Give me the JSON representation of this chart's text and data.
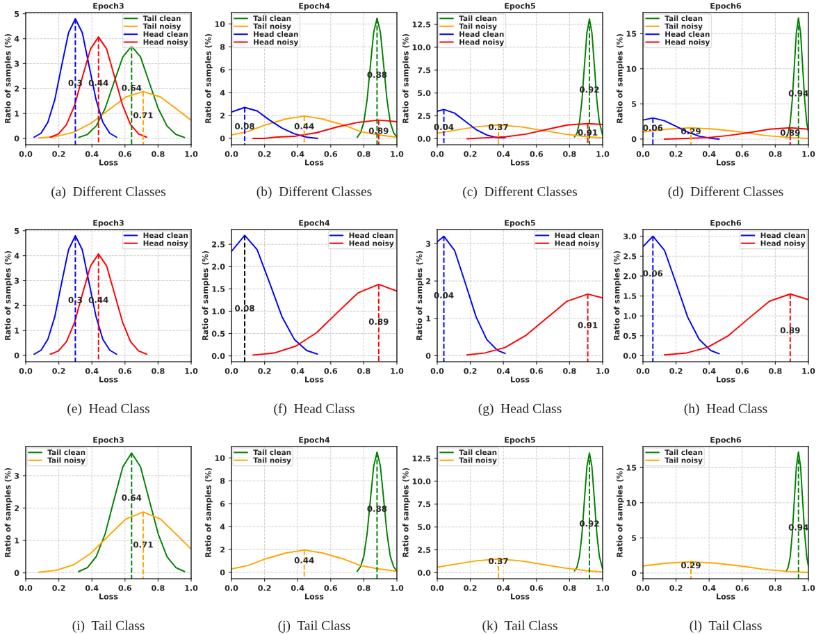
{
  "chart_data": [
    {
      "type": "line",
      "title": "Epoch3",
      "xlabel": "Loss",
      "ylabel": "Ratio of samples (%)",
      "grid": true,
      "legend": "top right",
      "xlim": [
        0,
        1
      ],
      "ylim": [
        -0.25,
        5.05
      ],
      "xticks": [
        {
          "value": 0,
          "label": "0.0"
        },
        {
          "value": 0.2,
          "label": "0.2"
        },
        {
          "value": 0.4,
          "label": "0.4"
        },
        {
          "value": 0.6,
          "label": "0.6"
        },
        {
          "value": 0.8,
          "label": "0.8"
        },
        {
          "value": 1,
          "label": "1.0"
        }
      ],
      "yticks": [
        0,
        1,
        2,
        3,
        4,
        5
      ],
      "series": [
        {
          "name": "Tail clean",
          "color": "#008000",
          "x": [
            0.32,
            0.373,
            0.426,
            0.48,
            0.533,
            0.587,
            0.64,
            0.694,
            0.747,
            0.801,
            0.854,
            0.908,
            0.96
          ],
          "values": [
            0.04,
            0.16,
            0.5,
            1.2,
            2.24,
            3.27,
            3.7,
            3.27,
            2.24,
            1.2,
            0.5,
            0.16,
            0.04
          ]
        },
        {
          "name": "Tail noisy",
          "color": "#ffa500",
          "x": [
            0.08,
            0.185,
            0.29,
            0.395,
            0.5,
            0.605,
            0.71,
            0.815,
            0.92,
            1.0
          ],
          "values": [
            0.02,
            0.08,
            0.25,
            0.61,
            1.14,
            1.66,
            1.88,
            1.66,
            1.14,
            0.73
          ]
        },
        {
          "name": "Head clean",
          "color": "#0000ff",
          "x": [
            0.051,
            0.093,
            0.134,
            0.176,
            0.217,
            0.259,
            0.3,
            0.342,
            0.383,
            0.425,
            0.466,
            0.508,
            0.549
          ],
          "values": [
            0.05,
            0.21,
            0.65,
            1.56,
            2.91,
            4.24,
            4.8,
            4.24,
            2.91,
            1.56,
            0.65,
            0.21,
            0.05
          ]
        },
        {
          "name": "Head noisy",
          "color": "#ff0000",
          "x": [
            0.149,
            0.198,
            0.246,
            0.295,
            0.343,
            0.392,
            0.44,
            0.489,
            0.537,
            0.586,
            0.634,
            0.683,
            0.731
          ],
          "values": [
            0.05,
            0.18,
            0.55,
            1.32,
            2.47,
            3.59,
            4.07,
            3.59,
            2.47,
            1.32,
            0.55,
            0.18,
            0.05
          ]
        },
        {
          "line_style": "dashed",
          "color": "#008000",
          "x": [
            0.64,
            0.64
          ],
          "values": [
            3.7,
            -0.25
          ]
        },
        {
          "line_style": "dashed",
          "color": "#ffa500",
          "x": [
            0.71,
            0.71
          ],
          "values": [
            1.88,
            -0.25
          ]
        },
        {
          "line_style": "dashed",
          "color": "#0000ff",
          "x": [
            0.3,
            0.3
          ],
          "values": [
            4.8,
            -0.25
          ]
        },
        {
          "line_style": "dashed",
          "color": "#ff0000",
          "x": [
            0.44,
            0.44
          ],
          "values": [
            4.07,
            -0.25
          ]
        }
      ],
      "annotations": [
        {
          "text": "0.3",
          "x": 0.3,
          "y": 2.2
        },
        {
          "text": "0.44",
          "x": 0.44,
          "y": 2.2
        },
        {
          "text": "0.64",
          "x": 0.64,
          "y": 2.0
        },
        {
          "text": "0.71",
          "x": 0.71,
          "y": 0.9
        },
        "(a)  Different Classes"
      ]
    },
    {
      "type": "line",
      "title": "Epoch4",
      "xlabel": "Loss",
      "ylabel": "Ratio of samples (%)",
      "grid": true,
      "legend": "top left",
      "xlim": [
        0,
        1
      ],
      "ylim": [
        -0.55,
        11
      ],
      "xticks": [
        {
          "value": 0,
          "label": "0.0"
        },
        {
          "value": 0.2,
          "label": "0.2"
        },
        {
          "value": 0.4,
          "label": "0.4"
        },
        {
          "value": 0.6,
          "label": "0.6"
        },
        {
          "value": 0.8,
          "label": "0.8"
        },
        {
          "value": 1,
          "label": "1.0"
        }
      ],
      "yticks": [
        0,
        2,
        4,
        6,
        8,
        10
      ],
      "series": [
        {
          "name": "Tail clean",
          "color": "#008000",
          "x": [
            0.76,
            0.78,
            0.8,
            0.82,
            0.84,
            0.86,
            0.88,
            0.9,
            0.92,
            0.94,
            0.96,
            0.98,
            1.0
          ],
          "values": [
            0.1,
            0.5,
            1.4,
            3.4,
            6.4,
            9.3,
            10.5,
            9.3,
            6.4,
            3.4,
            1.4,
            0.5,
            0.1
          ]
        },
        {
          "name": "Tail noisy",
          "color": "#ffa500",
          "x": [
            0,
            0.1,
            0.21,
            0.33,
            0.44,
            0.55,
            0.67,
            0.78,
            0.89,
            1.0
          ],
          "values": [
            0.3,
            0.6,
            1.2,
            1.7,
            1.95,
            1.7,
            1.2,
            0.6,
            0.3,
            0.1
          ]
        },
        {
          "name": "Head clean",
          "color": "#0000ff",
          "x": [
            0,
            0.08,
            0.155,
            0.23,
            0.305,
            0.38,
            0.455,
            0.52
          ],
          "values": [
            2.3,
            2.7,
            2.4,
            1.6,
            0.9,
            0.4,
            0.1,
            0.0
          ]
        },
        {
          "name": "Head noisy",
          "color": "#ff0000",
          "x": [
            0.13,
            0.2,
            0.265,
            0.39,
            0.515,
            0.64,
            0.765,
            0.89,
            1.0
          ],
          "values": [
            0.0,
            0.0,
            0.1,
            0.2,
            0.5,
            1.0,
            1.4,
            1.6,
            1.45
          ]
        },
        {
          "line_style": "dashed",
          "color": "#008000",
          "x": [
            0.88,
            0.88
          ],
          "values": [
            10.5,
            -0.55
          ]
        },
        {
          "line_style": "dashed",
          "color": "#ffa500",
          "x": [
            0.44,
            0.44
          ],
          "values": [
            1.95,
            -0.55
          ]
        },
        {
          "line_style": "dashed",
          "color": "#0000ff",
          "x": [
            0.08,
            0.08
          ],
          "values": [
            2.7,
            -0.55
          ]
        },
        {
          "line_style": "dashed",
          "color": "#ff0000",
          "x": [
            0.89,
            0.89
          ],
          "values": [
            1.6,
            -0.55
          ]
        }
      ],
      "annotations": [
        {
          "text": "0.88",
          "x": 0.88,
          "y": 5.5
        },
        {
          "text": "0.44",
          "x": 0.44,
          "y": 1.0
        },
        {
          "text": "0.08",
          "x": 0.08,
          "y": 1.0
        },
        {
          "text": "0.89",
          "x": 0.89,
          "y": 0.6
        },
        "(b)  Different Classes"
      ]
    },
    {
      "type": "line",
      "title": "Epoch5",
      "xlabel": "Loss",
      "ylabel": "Ratio of samples (%)",
      "grid": true,
      "legend": "top left",
      "xlim": [
        0,
        1
      ],
      "ylim": [
        -0.65,
        13.8
      ],
      "xticks": [
        {
          "value": 0,
          "label": "0.0"
        },
        {
          "value": 0.2,
          "label": "0.2"
        },
        {
          "value": 0.4,
          "label": "0.4"
        },
        {
          "value": 0.6,
          "label": "0.6"
        },
        {
          "value": 0.8,
          "label": "0.8"
        },
        {
          "value": 1,
          "label": "1.0"
        }
      ],
      "yticks": [
        {
          "value": 0,
          "label": "0.0"
        },
        {
          "value": 2.5,
          "label": "2.5"
        },
        {
          "value": 5,
          "label": "5.0"
        },
        {
          "value": 7.5,
          "label": "7.5"
        },
        {
          "value": 10,
          "label": "10.0"
        },
        {
          "value": 12.5,
          "label": "12.5"
        }
      ],
      "series": [
        {
          "name": "Tail clean",
          "color": "#008000",
          "x": [
            0.83,
            0.845,
            0.86,
            0.875,
            0.89,
            0.905,
            0.92,
            0.935,
            0.95,
            0.965,
            0.98,
            1.0
          ],
          "values": [
            0.2,
            0.6,
            1.8,
            4.2,
            8.0,
            11.6,
            13.1,
            11.6,
            8.0,
            4.2,
            1.8,
            0.4
          ]
        },
        {
          "name": "Tail noisy",
          "color": "#ffa500",
          "x": [
            0,
            0.1,
            0.235,
            0.37,
            0.505,
            0.64,
            0.775,
            0.91,
            1.0
          ],
          "values": [
            0.6,
            0.9,
            1.3,
            1.5,
            1.3,
            0.9,
            0.5,
            0.2,
            0.1
          ]
        },
        {
          "name": "Head clean",
          "color": "#0000ff",
          "x": [
            0,
            0.04,
            0.105,
            0.17,
            0.235,
            0.3,
            0.365,
            0.41
          ],
          "values": [
            3.0,
            3.2,
            2.8,
            1.9,
            1.0,
            0.4,
            0.1,
            0.1
          ]
        },
        {
          "name": "Head noisy",
          "color": "#ff0000",
          "x": [
            0.18,
            0.285,
            0.41,
            0.535,
            0.66,
            0.785,
            0.91,
            1.0
          ],
          "values": [
            0.0,
            0.1,
            0.2,
            0.5,
            1.0,
            1.5,
            1.65,
            1.55
          ]
        },
        {
          "line_style": "dashed",
          "color": "#008000",
          "x": [
            0.92,
            0.92
          ],
          "values": [
            13.1,
            -0.65
          ]
        },
        {
          "line_style": "dashed",
          "color": "#ffa500",
          "x": [
            0.37,
            0.37
          ],
          "values": [
            1.5,
            -0.65
          ]
        },
        {
          "line_style": "dashed",
          "color": "#0000ff",
          "x": [
            0.04,
            0.04
          ],
          "values": [
            3.2,
            -0.65
          ]
        },
        {
          "line_style": "dashed",
          "color": "#ff0000",
          "x": [
            0.91,
            0.91
          ],
          "values": [
            1.65,
            -0.65
          ]
        }
      ],
      "annotations": [
        {
          "text": "0.92",
          "x": 0.92,
          "y": 5.3
        },
        {
          "text": "0.37",
          "x": 0.37,
          "y": 1.2
        },
        {
          "text": "0.04",
          "x": 0.04,
          "y": 1.2
        },
        {
          "text": "0.91",
          "x": 0.91,
          "y": 0.6
        },
        "(c)  Different Classes"
      ]
    },
    {
      "type": "line",
      "title": "Epoch6",
      "xlabel": "Loss",
      "ylabel": "Ratio of samples (%)",
      "grid": true,
      "legend": "top left",
      "xlim": [
        0,
        1
      ],
      "ylim": [
        -0.8,
        18
      ],
      "xticks": [
        {
          "value": 0,
          "label": "0.0"
        },
        {
          "value": 0.2,
          "label": "0.2"
        },
        {
          "value": 0.4,
          "label": "0.4"
        },
        {
          "value": 0.6,
          "label": "0.6"
        },
        {
          "value": 0.8,
          "label": "0.8"
        },
        {
          "value": 1,
          "label": "1.0"
        }
      ],
      "yticks": [
        0,
        5,
        10,
        15
      ],
      "series": [
        {
          "name": "Tail clean",
          "color": "#008000",
          "x": [
            0.865,
            0.8775,
            0.89,
            0.9025,
            0.915,
            0.9275,
            0.94,
            0.9525,
            0.965,
            0.9775,
            0.99,
            1.0
          ],
          "values": [
            0.2,
            0.8,
            2.3,
            5.6,
            10.4,
            15.2,
            17.2,
            15.2,
            10.4,
            5.6,
            2.3,
            1.0
          ]
        },
        {
          "name": "Tail noisy",
          "color": "#ffa500",
          "x": [
            0,
            0.14,
            0.29,
            0.44,
            0.59,
            0.74,
            0.89,
            1.0
          ],
          "values": [
            1.0,
            1.4,
            1.6,
            1.4,
            1.0,
            0.5,
            0.2,
            0.1
          ]
        },
        {
          "name": "Head clean",
          "color": "#0000ff",
          "x": [
            0,
            0.06,
            0.13,
            0.2,
            0.27,
            0.34,
            0.41,
            0.46
          ],
          "values": [
            2.7,
            3.0,
            2.6,
            1.8,
            1.0,
            0.4,
            0.1,
            0.0
          ]
        },
        {
          "name": "Head noisy",
          "color": "#ff0000",
          "x": [
            0.13,
            0.265,
            0.39,
            0.515,
            0.64,
            0.765,
            0.89,
            1.0
          ],
          "values": [
            0.0,
            0.1,
            0.2,
            0.5,
            0.9,
            1.4,
            1.6,
            1.4
          ]
        },
        {
          "line_style": "dashed",
          "color": "#008000",
          "x": [
            0.94,
            0.94
          ],
          "values": [
            17.2,
            -0.8
          ]
        },
        {
          "line_style": "dashed",
          "color": "#ffa500",
          "x": [
            0.29,
            0.29
          ],
          "values": [
            1.6,
            -0.8
          ]
        },
        {
          "line_style": "dashed",
          "color": "#0000ff",
          "x": [
            0.06,
            0.06
          ],
          "values": [
            3.0,
            -0.8
          ]
        },
        {
          "line_style": "dashed",
          "color": "#ff0000",
          "x": [
            0.89,
            0.89
          ],
          "values": [
            1.6,
            -0.8
          ]
        }
      ],
      "annotations": [
        {
          "text": "0.94",
          "x": 0.94,
          "y": 6.4
        },
        {
          "text": "0.29",
          "x": 0.29,
          "y": 1.0
        },
        {
          "text": "0.06",
          "x": 0.06,
          "y": 1.5
        },
        {
          "text": "0.89",
          "x": 0.89,
          "y": 0.8
        },
        "(d)  Different Classes"
      ]
    },
    {
      "type": "line",
      "title": "Epoch3",
      "xlabel": "Loss",
      "ylabel": "Ratio of samples (%)",
      "grid": true,
      "legend": "top right",
      "xlim": [
        0,
        1
      ],
      "ylim": [
        -0.25,
        5.05
      ],
      "xticks": [
        {
          "value": 0,
          "label": "0.0"
        },
        {
          "value": 0.2,
          "label": "0.2"
        },
        {
          "value": 0.4,
          "label": "0.4"
        },
        {
          "value": 0.6,
          "label": "0.6"
        },
        {
          "value": 0.8,
          "label": "0.8"
        },
        {
          "value": 1,
          "label": "1.0"
        }
      ],
      "yticks": [
        0,
        1,
        2,
        3,
        4,
        5
      ],
      "series": [
        {
          "name": "Head clean",
          "color": "#0000ff",
          "x": [
            0.051,
            0.093,
            0.134,
            0.176,
            0.217,
            0.259,
            0.3,
            0.342,
            0.383,
            0.425,
            0.466,
            0.508,
            0.549
          ],
          "values": [
            0.05,
            0.21,
            0.65,
            1.56,
            2.91,
            4.24,
            4.8,
            4.24,
            2.91,
            1.56,
            0.65,
            0.21,
            0.05
          ]
        },
        {
          "name": "Head noisy",
          "color": "#ff0000",
          "x": [
            0.149,
            0.198,
            0.246,
            0.295,
            0.343,
            0.392,
            0.44,
            0.489,
            0.537,
            0.586,
            0.634,
            0.683,
            0.731
          ],
          "values": [
            0.05,
            0.18,
            0.55,
            1.32,
            2.47,
            3.59,
            4.07,
            3.59,
            2.47,
            1.32,
            0.55,
            0.18,
            0.05
          ]
        },
        {
          "line_style": "dashed",
          "color": "#0000ff",
          "x": [
            0.3,
            0.3
          ],
          "values": [
            4.8,
            -0.25
          ]
        },
        {
          "line_style": "dashed",
          "color": "#ff0000",
          "x": [
            0.44,
            0.44
          ],
          "values": [
            4.07,
            -0.25
          ]
        }
      ],
      "annotations": [
        {
          "text": "0.3",
          "x": 0.3,
          "y": 2.2
        },
        {
          "text": "0.44",
          "x": 0.44,
          "y": 2.2
        },
        "(e)  Head Class"
      ]
    },
    {
      "type": "line",
      "title": "Epoch4",
      "xlabel": "Loss",
      "ylabel": "Ratio of samples (%)",
      "grid": true,
      "legend": "top right",
      "xlim": [
        0,
        1
      ],
      "ylim": [
        -0.13,
        2.83
      ],
      "xticks": [
        {
          "value": 0,
          "label": "0.0"
        },
        {
          "value": 0.2,
          "label": "0.2"
        },
        {
          "value": 0.4,
          "label": "0.4"
        },
        {
          "value": 0.6,
          "label": "0.6"
        },
        {
          "value": 0.8,
          "label": "0.8"
        },
        {
          "value": 1,
          "label": "1.0"
        }
      ],
      "yticks": [
        {
          "value": 0,
          "label": "0.0"
        },
        {
          "value": 0.5,
          "label": "0.5"
        },
        {
          "value": 1,
          "label": "1.0"
        },
        {
          "value": 1.5,
          "label": "1.5"
        },
        {
          "value": 2,
          "label": "2.0"
        },
        {
          "value": 2.5,
          "label": "2.5"
        }
      ],
      "series": [
        {
          "name": "Head clean",
          "color": "#0000ff",
          "x": [
            0,
            0.08,
            0.155,
            0.23,
            0.305,
            0.38,
            0.455,
            0.52
          ],
          "values": [
            2.34,
            2.7,
            2.38,
            1.64,
            0.88,
            0.37,
            0.12,
            0.04
          ]
        },
        {
          "name": "Head noisy",
          "color": "#ff0000",
          "x": [
            0.13,
            0.2,
            0.265,
            0.39,
            0.515,
            0.64,
            0.765,
            0.89,
            1.0
          ],
          "values": [
            0.02,
            0.04,
            0.07,
            0.22,
            0.52,
            0.97,
            1.41,
            1.6,
            1.45
          ]
        },
        {
          "line_style": "dashed",
          "color": "#000000",
          "x": [
            0.08,
            0.08
          ],
          "values": [
            2.7,
            -0.13
          ]
        },
        {
          "line_style": "dashed",
          "color": "#ff0000",
          "x": [
            0.89,
            0.89
          ],
          "values": [
            1.6,
            -0.13
          ]
        }
      ],
      "annotations": [
        {
          "text": "0.08",
          "x": 0.08,
          "y": 1.05
        },
        {
          "text": "0.89",
          "x": 0.89,
          "y": 0.75
        },
        "(f)  Head Class"
      ]
    },
    {
      "type": "line",
      "title": "Epoch5",
      "xlabel": "Loss",
      "ylabel": "Ratio of samples (%)",
      "grid": true,
      "legend": "top right",
      "xlim": [
        0,
        1
      ],
      "ylim": [
        -0.16,
        3.38
      ],
      "xticks": [
        {
          "value": 0,
          "label": "0.0"
        },
        {
          "value": 0.2,
          "label": "0.2"
        },
        {
          "value": 0.4,
          "label": "0.4"
        },
        {
          "value": 0.6,
          "label": "0.6"
        },
        {
          "value": 0.8,
          "label": "0.8"
        },
        {
          "value": 1,
          "label": "1.0"
        }
      ],
      "yticks": [
        0,
        1,
        2,
        3
      ],
      "series": [
        {
          "name": "Head clean",
          "color": "#0000ff",
          "x": [
            0,
            0.04,
            0.105,
            0.17,
            0.235,
            0.3,
            0.365,
            0.41
          ],
          "values": [
            3.05,
            3.2,
            2.82,
            1.94,
            1.04,
            0.43,
            0.14,
            0.06
          ]
        },
        {
          "name": "Head noisy",
          "color": "#ff0000",
          "x": [
            0.18,
            0.285,
            0.41,
            0.535,
            0.66,
            0.785,
            0.91,
            1.0
          ],
          "values": [
            0.02,
            0.07,
            0.22,
            0.54,
            1.0,
            1.46,
            1.65,
            1.55
          ]
        },
        {
          "line_style": "dashed",
          "color": "#0000ff",
          "x": [
            0.04,
            0.04
          ],
          "values": [
            3.2,
            -0.16
          ]
        },
        {
          "line_style": "dashed",
          "color": "#ff0000",
          "x": [
            0.91,
            0.91
          ],
          "values": [
            1.65,
            -0.16
          ]
        }
      ],
      "annotations": [
        {
          "text": "0.04",
          "x": 0.04,
          "y": 1.6
        },
        {
          "text": "0.91",
          "x": 0.91,
          "y": 0.8
        },
        "(g)  Head Class"
      ]
    },
    {
      "type": "line",
      "title": "Epoch6",
      "xlabel": "Loss",
      "ylabel": "Ratio of samples (%)",
      "grid": true,
      "legend": "top right",
      "xlim": [
        0,
        1
      ],
      "ylim": [
        -0.15,
        3.17
      ],
      "xticks": [
        {
          "value": 0,
          "label": "0.0"
        },
        {
          "value": 0.2,
          "label": "0.2"
        },
        {
          "value": 0.4,
          "label": "0.4"
        },
        {
          "value": 0.6,
          "label": "0.6"
        },
        {
          "value": 0.8,
          "label": "0.8"
        },
        {
          "value": 1,
          "label": "1.0"
        }
      ],
      "yticks": [
        {
          "value": 0,
          "label": "0.0"
        },
        {
          "value": 0.5,
          "label": "0.5"
        },
        {
          "value": 1,
          "label": "1.0"
        },
        {
          "value": 1.5,
          "label": "1.5"
        },
        {
          "value": 2,
          "label": "2.0"
        },
        {
          "value": 2.5,
          "label": "2.5"
        },
        {
          "value": 3,
          "label": "3.0"
        }
      ],
      "series": [
        {
          "name": "Head clean",
          "color": "#0000ff",
          "x": [
            0,
            0.06,
            0.13,
            0.2,
            0.27,
            0.34,
            0.41,
            0.46
          ],
          "values": [
            2.74,
            3.0,
            2.65,
            1.82,
            0.97,
            0.41,
            0.13,
            0.05
          ]
        },
        {
          "name": "Head noisy",
          "color": "#ff0000",
          "x": [
            0.13,
            0.265,
            0.39,
            0.515,
            0.64,
            0.765,
            0.89,
            1.0
          ],
          "values": [
            0.02,
            0.07,
            0.21,
            0.5,
            0.94,
            1.37,
            1.55,
            1.41
          ]
        },
        {
          "line_style": "dashed",
          "color": "#0000ff",
          "x": [
            0.06,
            0.06
          ],
          "values": [
            3.0,
            -0.15
          ]
        },
        {
          "line_style": "dashed",
          "color": "#ff0000",
          "x": [
            0.89,
            0.89
          ],
          "values": [
            1.55,
            -0.15
          ]
        }
      ],
      "annotations": [
        {
          "text": "0.06",
          "x": 0.06,
          "y": 2.05
        },
        {
          "text": "0.89",
          "x": 0.89,
          "y": 0.62
        },
        "(h)  Head Class"
      ]
    },
    {
      "type": "line",
      "title": "Epoch3",
      "xlabel": "Loss",
      "ylabel": "Ratio of samples (%)",
      "grid": true,
      "legend": "top left",
      "xlim": [
        0,
        1
      ],
      "ylim": [
        -0.18,
        3.9
      ],
      "xticks": [
        {
          "value": 0,
          "label": "0.0"
        },
        {
          "value": 0.2,
          "label": "0.2"
        },
        {
          "value": 0.4,
          "label": "0.4"
        },
        {
          "value": 0.6,
          "label": "0.6"
        },
        {
          "value": 0.8,
          "label": "0.8"
        },
        {
          "value": 1,
          "label": "1.0"
        }
      ],
      "yticks": [
        0,
        1,
        2,
        3
      ],
      "series": [
        {
          "name": "Tail clean",
          "color": "#008000",
          "x": [
            0.32,
            0.373,
            0.426,
            0.48,
            0.533,
            0.587,
            0.64,
            0.694,
            0.747,
            0.801,
            0.854,
            0.908,
            0.96
          ],
          "values": [
            0.04,
            0.16,
            0.5,
            1.2,
            2.24,
            3.27,
            3.7,
            3.27,
            2.24,
            1.2,
            0.5,
            0.16,
            0.04
          ]
        },
        {
          "name": "Tail noisy",
          "color": "#ffa500",
          "x": [
            0.08,
            0.185,
            0.29,
            0.395,
            0.5,
            0.605,
            0.71,
            0.815,
            0.92,
            1.0
          ],
          "values": [
            0.02,
            0.08,
            0.25,
            0.61,
            1.14,
            1.66,
            1.88,
            1.66,
            1.14,
            0.73
          ]
        },
        {
          "line_style": "dashed",
          "color": "#008000",
          "x": [
            0.64,
            0.64
          ],
          "values": [
            3.7,
            -0.18
          ]
        },
        {
          "line_style": "dashed",
          "color": "#ffa500",
          "x": [
            0.71,
            0.71
          ],
          "values": [
            1.88,
            -0.18
          ]
        }
      ],
      "annotations": [
        {
          "text": "0.64",
          "x": 0.64,
          "y": 2.3
        },
        {
          "text": "0.71",
          "x": 0.71,
          "y": 0.85
        },
        "(i)  Tail Class"
      ]
    },
    {
      "type": "line",
      "title": "Epoch4",
      "xlabel": "Loss",
      "ylabel": "Ratio of samples (%)",
      "grid": true,
      "legend": "top left",
      "xlim": [
        0,
        1
      ],
      "ylim": [
        -0.55,
        11
      ],
      "xticks": [
        {
          "value": 0,
          "label": "0.0"
        },
        {
          "value": 0.2,
          "label": "0.2"
        },
        {
          "value": 0.4,
          "label": "0.4"
        },
        {
          "value": 0.6,
          "label": "0.6"
        },
        {
          "value": 0.8,
          "label": "0.8"
        },
        {
          "value": 1,
          "label": "1.0"
        }
      ],
      "yticks": [
        0,
        2,
        4,
        6,
        8,
        10
      ],
      "series": [
        {
          "name": "Tail clean",
          "color": "#008000",
          "x": [
            0.76,
            0.78,
            0.8,
            0.82,
            0.84,
            0.86,
            0.88,
            0.9,
            0.92,
            0.94,
            0.96,
            0.98,
            1.0
          ],
          "values": [
            0.1,
            0.5,
            1.4,
            3.4,
            6.4,
            9.3,
            10.5,
            9.3,
            6.4,
            3.4,
            1.4,
            0.5,
            0.1
          ]
        },
        {
          "name": "Tail noisy",
          "color": "#ffa500",
          "x": [
            0,
            0.1,
            0.21,
            0.33,
            0.44,
            0.55,
            0.67,
            0.78,
            0.89,
            1.0
          ],
          "values": [
            0.3,
            0.6,
            1.2,
            1.7,
            1.95,
            1.7,
            1.2,
            0.6,
            0.3,
            0.1
          ]
        },
        {
          "line_style": "dashed",
          "color": "#008000",
          "x": [
            0.88,
            0.88
          ],
          "values": [
            10.5,
            -0.55
          ]
        },
        {
          "line_style": "dashed",
          "color": "#ffa500",
          "x": [
            0.44,
            0.44
          ],
          "values": [
            1.95,
            -0.55
          ]
        }
      ],
      "annotations": [
        {
          "text": "0.88",
          "x": 0.88,
          "y": 5.5
        },
        {
          "text": "0.44",
          "x": 0.44,
          "y": 1.0
        },
        "(j)  Tail Class"
      ]
    },
    {
      "type": "line",
      "title": "Epoch5",
      "xlabel": "Loss",
      "ylabel": "Ratio of samples (%)",
      "grid": true,
      "legend": "top left",
      "xlim": [
        0,
        1
      ],
      "ylim": [
        -0.65,
        13.8
      ],
      "xticks": [
        {
          "value": 0,
          "label": "0.0"
        },
        {
          "value": 0.2,
          "label": "0.2"
        },
        {
          "value": 0.4,
          "label": "0.4"
        },
        {
          "value": 0.6,
          "label": "0.6"
        },
        {
          "value": 0.8,
          "label": "0.8"
        },
        {
          "value": 1,
          "label": "1.0"
        }
      ],
      "yticks": [
        {
          "value": 0,
          "label": "0.0"
        },
        {
          "value": 2.5,
          "label": "2.5"
        },
        {
          "value": 5,
          "label": "5.0"
        },
        {
          "value": 7.5,
          "label": "7.5"
        },
        {
          "value": 10,
          "label": "10.0"
        },
        {
          "value": 12.5,
          "label": "12.5"
        }
      ],
      "series": [
        {
          "name": "Tail clean",
          "color": "#008000",
          "x": [
            0.83,
            0.845,
            0.86,
            0.875,
            0.89,
            0.905,
            0.92,
            0.935,
            0.95,
            0.965,
            0.98,
            1.0
          ],
          "values": [
            0.2,
            0.6,
            1.8,
            4.2,
            8.0,
            11.6,
            13.1,
            11.6,
            8.0,
            4.2,
            1.8,
            0.4
          ]
        },
        {
          "name": "Tail noisy",
          "color": "#ffa500",
          "x": [
            0,
            0.1,
            0.235,
            0.37,
            0.505,
            0.64,
            0.775,
            0.91,
            1.0
          ],
          "values": [
            0.6,
            0.9,
            1.3,
            1.5,
            1.3,
            0.9,
            0.5,
            0.2,
            0.1
          ]
        },
        {
          "line_style": "dashed",
          "color": "#008000",
          "x": [
            0.92,
            0.92
          ],
          "values": [
            13.1,
            -0.65
          ]
        },
        {
          "line_style": "dashed",
          "color": "#ffa500",
          "x": [
            0.37,
            0.37
          ],
          "values": [
            1.5,
            -0.65
          ]
        }
      ],
      "annotations": [
        {
          "text": "0.92",
          "x": 0.92,
          "y": 5.3
        },
        {
          "text": "0.37",
          "x": 0.37,
          "y": 1.2
        },
        "(k)  Tail Class"
      ]
    },
    {
      "type": "line",
      "title": "Epoch6",
      "xlabel": "Loss",
      "ylabel": "Ratio of samples (%)",
      "grid": true,
      "legend": "top left",
      "xlim": [
        0,
        1
      ],
      "ylim": [
        -0.8,
        18
      ],
      "xticks": [
        {
          "value": 0,
          "label": "0.0"
        },
        {
          "value": 0.2,
          "label": "0.2"
        },
        {
          "value": 0.4,
          "label": "0.4"
        },
        {
          "value": 0.6,
          "label": "0.6"
        },
        {
          "value": 0.8,
          "label": "0.8"
        },
        {
          "value": 1,
          "label": "1.0"
        }
      ],
      "yticks": [
        0,
        5,
        10,
        15
      ],
      "series": [
        {
          "name": "Tail clean",
          "color": "#008000",
          "x": [
            0.865,
            0.8775,
            0.89,
            0.9025,
            0.915,
            0.9275,
            0.94,
            0.9525,
            0.965,
            0.9775,
            0.99,
            1.0
          ],
          "values": [
            0.2,
            0.8,
            2.3,
            5.6,
            10.4,
            15.2,
            17.2,
            15.2,
            10.4,
            5.6,
            2.3,
            1.0
          ]
        },
        {
          "name": "Tail noisy",
          "color": "#ffa500",
          "x": [
            0,
            0.14,
            0.29,
            0.44,
            0.59,
            0.74,
            0.89,
            1.0
          ],
          "values": [
            1.0,
            1.4,
            1.6,
            1.4,
            1.0,
            0.5,
            0.2,
            0.1
          ]
        },
        {
          "line_style": "dashed",
          "color": "#008000",
          "x": [
            0.94,
            0.94
          ],
          "values": [
            17.2,
            -0.8
          ]
        },
        {
          "line_style": "dashed",
          "color": "#ffa500",
          "x": [
            0.29,
            0.29
          ],
          "values": [
            1.6,
            -0.8
          ]
        }
      ],
      "annotations": [
        {
          "text": "0.94",
          "x": 0.94,
          "y": 6.4
        },
        {
          "text": "0.29",
          "x": 0.29,
          "y": 1.0
        },
        "(l)  Tail Class"
      ]
    }
  ]
}
